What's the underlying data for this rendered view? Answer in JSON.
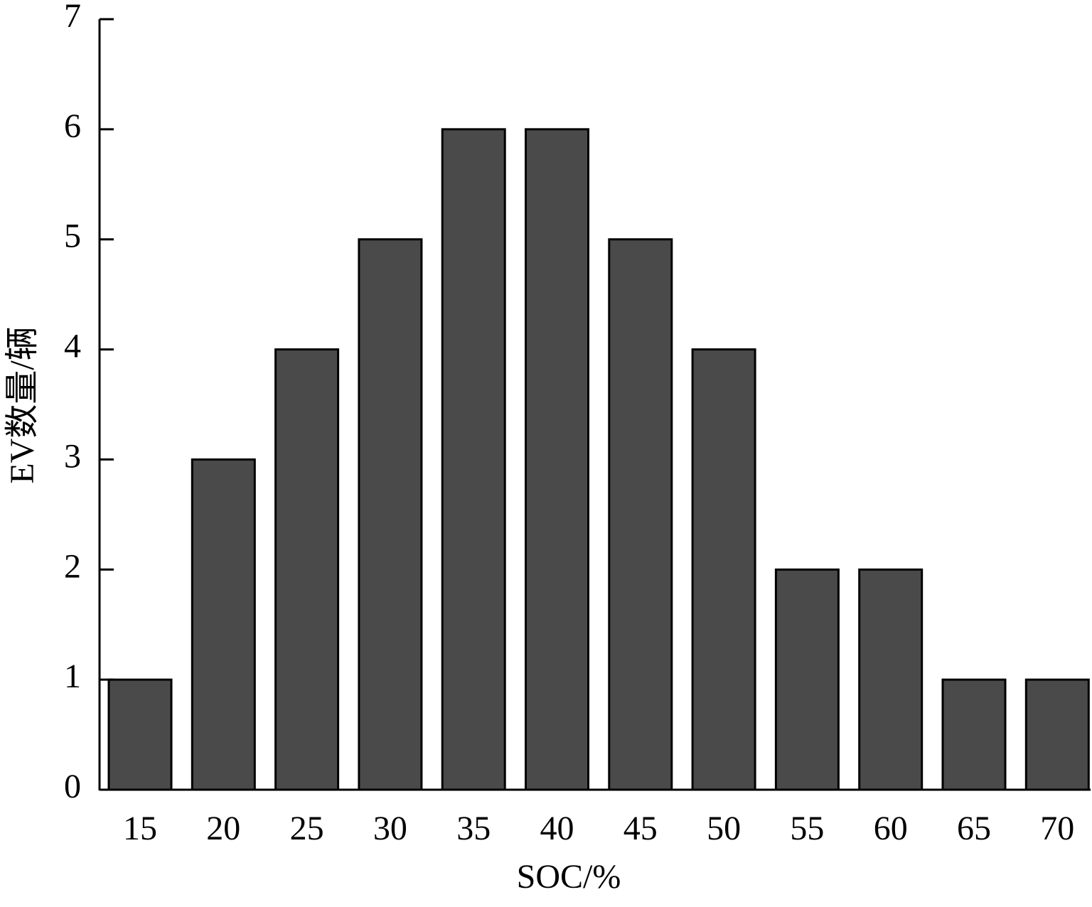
{
  "chart_data": {
    "type": "bar",
    "x_label": "SOC/%",
    "y_label": "EV数量/辆",
    "categories": [
      "15",
      "20",
      "25",
      "30",
      "35",
      "40",
      "45",
      "50",
      "55",
      "60",
      "65",
      "70"
    ],
    "values": [
      1,
      3,
      4,
      5,
      6,
      6,
      5,
      4,
      2,
      2,
      1,
      1
    ],
    "color": "#4a4a4a",
    "ylim": [
      0,
      7
    ],
    "yticks": [
      0,
      1,
      2,
      3,
      4,
      5,
      6,
      7
    ],
    "grid": false
  }
}
